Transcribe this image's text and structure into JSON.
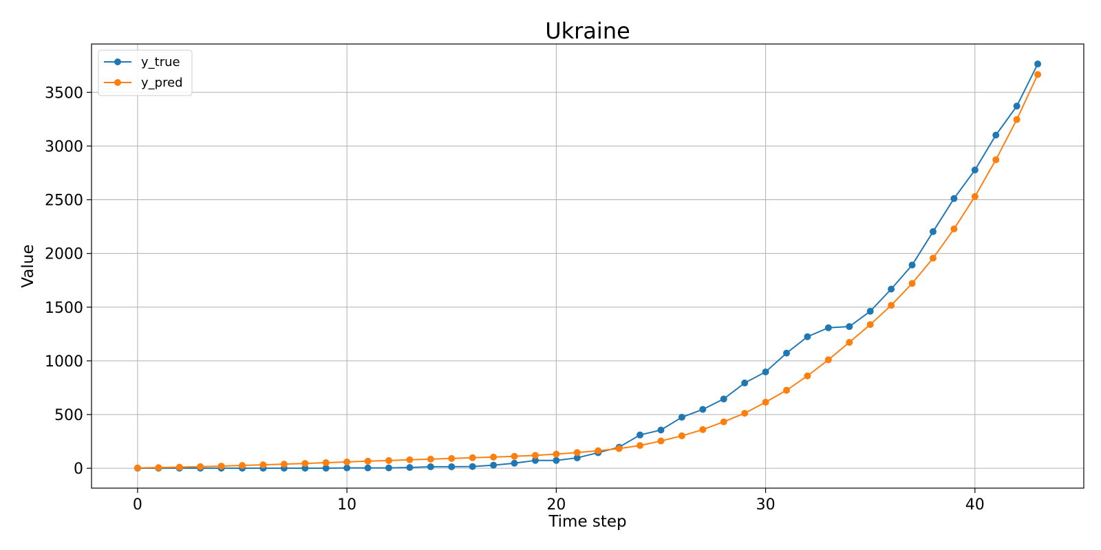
{
  "chart_data": {
    "type": "line",
    "title": "Ukraine",
    "xlabel": "Time step",
    "ylabel": "Value",
    "xlim": [
      -2.2,
      45.2
    ],
    "ylim": [
      -185,
      3950
    ],
    "xticks": [
      0,
      10,
      20,
      30,
      40
    ],
    "yticks": [
      0,
      500,
      1000,
      1500,
      2000,
      2500,
      3000,
      3500
    ],
    "grid": true,
    "legend_position": "top-left",
    "series": [
      {
        "name": "y_true",
        "color": "#1f77b4",
        "x": [
          0,
          1,
          2,
          3,
          4,
          5,
          6,
          7,
          8,
          9,
          10,
          11,
          12,
          13,
          14,
          15,
          16,
          17,
          18,
          19,
          20,
          21,
          22,
          23,
          24,
          25,
          26,
          27,
          28,
          29,
          30,
          31,
          32,
          33,
          34,
          35,
          36,
          37,
          38,
          39,
          40,
          41,
          42,
          43
        ],
        "values": [
          1,
          1,
          1,
          1,
          1,
          1,
          1,
          1,
          1,
          1,
          3,
          3,
          3,
          7,
          14,
          14,
          16,
          29,
          47,
          73,
          73,
          97,
          145,
          196,
          310,
          356,
          475,
          548,
          645,
          794,
          897,
          1072,
          1225,
          1308,
          1319,
          1462,
          1668,
          1892,
          2203,
          2511,
          2777,
          3102,
          3372,
          3764
        ]
      },
      {
        "name": "y_pred",
        "color": "#ff7f0e",
        "x": [
          0,
          1,
          2,
          3,
          4,
          5,
          6,
          7,
          8,
          9,
          10,
          11,
          12,
          13,
          14,
          15,
          16,
          17,
          18,
          19,
          20,
          21,
          22,
          23,
          24,
          25,
          26,
          27,
          28,
          29,
          30,
          31,
          32,
          33,
          34,
          35,
          36,
          37,
          38,
          39,
          40,
          41,
          42,
          43
        ],
        "values": [
          3,
          6,
          10,
          15,
          20,
          26,
          32,
          38,
          45,
          52,
          59,
          66,
          72,
          79,
          85,
          91,
          98,
          104,
          111,
          120,
          132,
          146,
          163,
          183,
          212,
          254,
          302,
          360,
          432,
          512,
          615,
          726,
          860,
          1010,
          1172,
          1338,
          1517,
          1721,
          1956,
          2228,
          2530,
          2872,
          3247,
          3666
        ]
      }
    ]
  }
}
